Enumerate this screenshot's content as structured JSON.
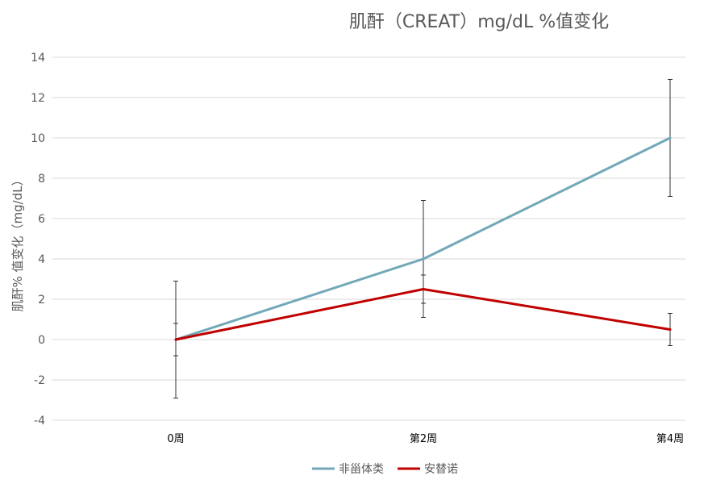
{
  "chart_data": {
    "type": "line",
    "title": "肌酐（CREAT）mg/dL %值变化",
    "xlabel": "",
    "ylabel": "肌酐% 值变化（mg/dL）",
    "categories": [
      "0周",
      "第2周",
      "第4周"
    ],
    "ylim": [
      -4,
      14
    ],
    "yticks": [
      -4,
      -2,
      0,
      2,
      4,
      6,
      8,
      10,
      12,
      14
    ],
    "grid": true,
    "legend_position": "bottom",
    "series": [
      {
        "name": "非甾体类",
        "color": "#72a8b8",
        "values": [
          0,
          4,
          10
        ],
        "error_low": [
          -2.9,
          1.1,
          7.1
        ],
        "error_high": [
          2.9,
          6.9,
          12.9
        ]
      },
      {
        "name": "安替诺",
        "color": "#c00000",
        "values": [
          0,
          2.5,
          0.5
        ],
        "error_low": [
          -0.8,
          1.8,
          -0.3
        ],
        "error_high": [
          0.8,
          3.2,
          1.3
        ]
      }
    ]
  }
}
